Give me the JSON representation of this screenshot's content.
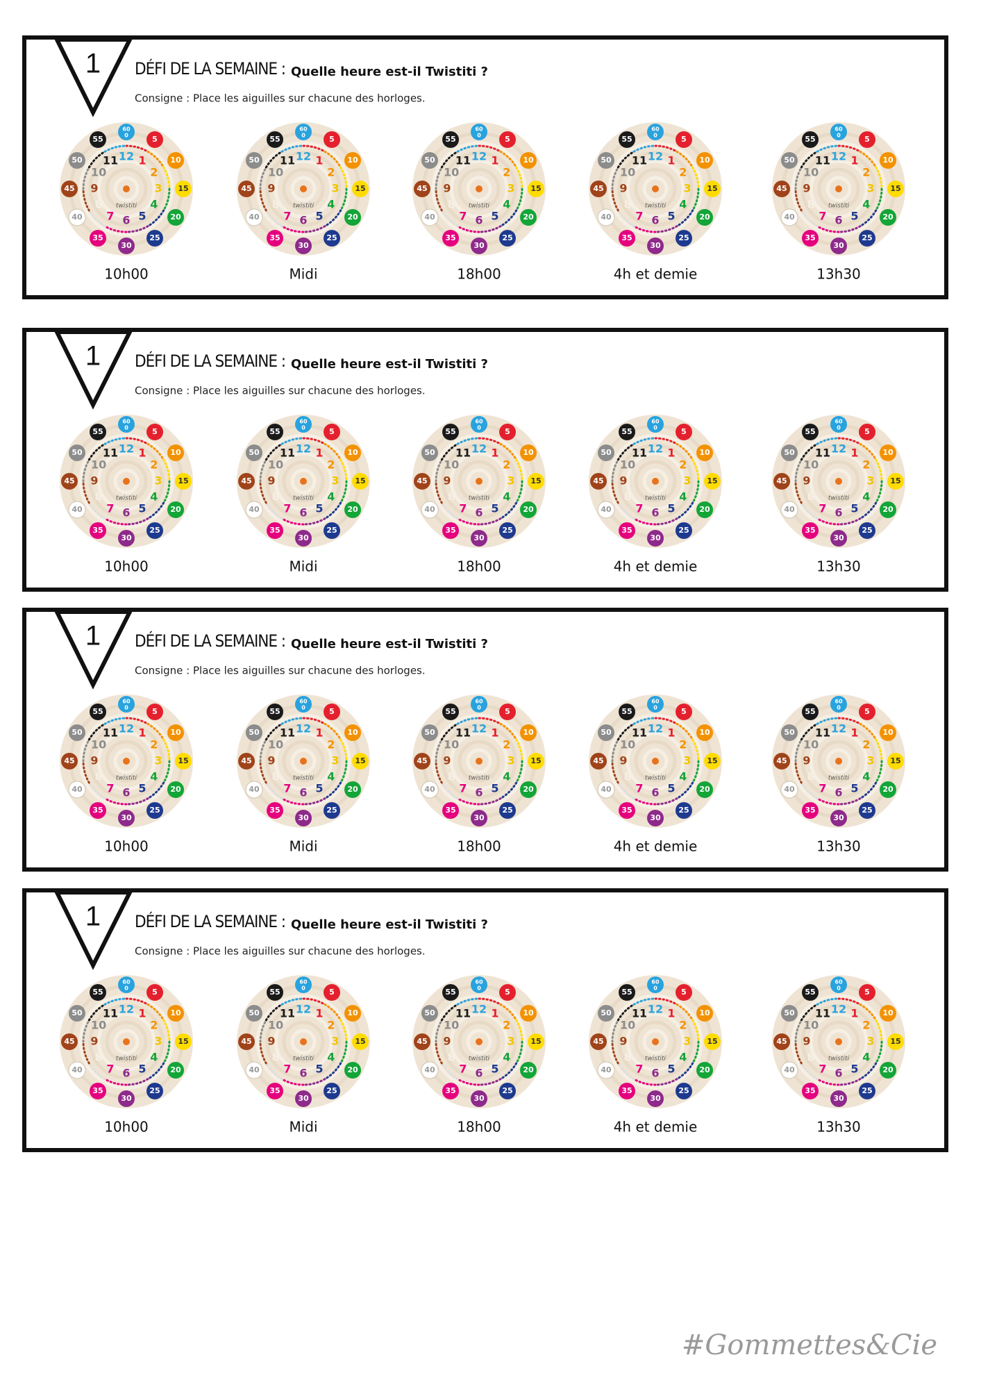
{
  "cards": [
    {
      "number": "1",
      "title": "DÉFI DE LA SEMAINE :",
      "question": "Quelle heure est-il Twistiti ?",
      "instruction": "Consigne : Place les aiguilles sur chacune des horloges.",
      "clocks": [
        "10h00",
        "Midi",
        "18h00",
        "4h et demie",
        "13h30"
      ]
    },
    {
      "number": "1",
      "title": "DÉFI DE LA SEMAINE :",
      "question": "Quelle heure est-il Twistiti ?",
      "instruction": "Consigne : Place les aiguilles sur chacune des horloges.",
      "clocks": [
        "10h00",
        "Midi",
        "18h00",
        "4h et demie",
        "13h30"
      ]
    },
    {
      "number": "1",
      "title": "DÉFI DE LA SEMAINE :",
      "question": "Quelle heure est-il Twistiti ?",
      "instruction": "Consigne : Place les aiguilles sur chacune des horloges.",
      "clocks": [
        "10h00",
        "Midi",
        "18h00",
        "4h et demie",
        "13h30"
      ]
    },
    {
      "number": "1",
      "title": "DÉFI DE LA SEMAINE :",
      "question": "Quelle heure est-il Twistiti ?",
      "instruction": "Consigne : Place les aiguilles sur chacune des horloges.",
      "clocks": [
        "10h00",
        "Midi",
        "18h00",
        "4h et demie",
        "13h30"
      ]
    }
  ],
  "clock_face": {
    "hours": [
      "12",
      "1",
      "2",
      "3",
      "4",
      "5",
      "6",
      "7",
      "8",
      "9",
      "10",
      "11"
    ],
    "minutes": [
      "60",
      "5",
      "10",
      "15",
      "20",
      "25",
      "30",
      "35",
      "40",
      "45",
      "50",
      "55"
    ],
    "zero": "0",
    "brand": "twistiti"
  },
  "footer": "#Gommettes&Cie"
}
